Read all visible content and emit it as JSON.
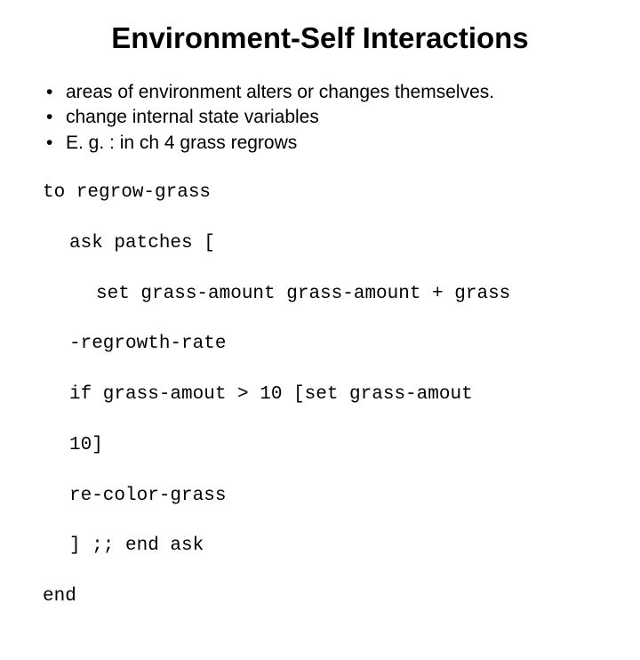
{
  "title": "Environment-Self Interactions",
  "title_fontsize": 33,
  "title_fontweight": 700,
  "title_align": "center",
  "title_color": "#000000",
  "background_color": "#ffffff",
  "body_fontsize": 21,
  "body_color": "#000000",
  "body_font": "Arial",
  "code_font": "Courier New",
  "bullets": [
    "areas of environment alters or changes themselves.",
    "change internal state variables",
    "E. g. : in ch 4 grass regrows"
  ],
  "code": {
    "l1": "to regrow-grass",
    "l2": "ask patches [",
    "l3": "set grass-amount grass-amount + grass",
    "l4": "-regrowth-rate",
    "l5": "if grass-amout > 10 [set grass-amout",
    "l6": "10]",
    "l7": "re-color-grass",
    "l8": "] ;; end ask",
    "l9": "end"
  }
}
